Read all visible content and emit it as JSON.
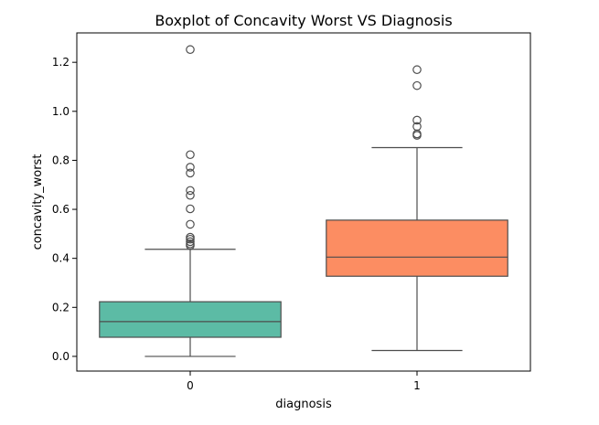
{
  "chart_data": {
    "type": "boxplot",
    "title": "Boxplot of Concavity Worst VS Diagnosis",
    "xlabel": "diagnosis",
    "ylabel": "concavity_worst",
    "categories": [
      "0",
      "1"
    ],
    "ylim": [
      -0.06,
      1.32
    ],
    "yticks": [
      0.0,
      0.2,
      0.4,
      0.6,
      0.8,
      1.0,
      1.2
    ],
    "ytick_labels": [
      "0.0",
      "0.2",
      "0.4",
      "0.6",
      "0.8",
      "1.0",
      "1.2"
    ],
    "grid": false,
    "boxes": [
      {
        "category": "0",
        "color": "#5cbba5",
        "whisker_low": 0.0,
        "q1": 0.078,
        "median": 0.142,
        "q3": 0.223,
        "whisker_high": 0.437,
        "outliers": [
          0.452,
          0.459,
          0.468,
          0.478,
          0.486,
          0.539,
          0.602,
          0.657,
          0.677,
          0.748,
          0.772,
          0.823,
          1.252
        ]
      },
      {
        "category": "1",
        "color": "#fc8d62",
        "whisker_low": 0.024,
        "q1": 0.327,
        "median": 0.405,
        "q3": 0.556,
        "whisker_high": 0.852,
        "outliers": [
          0.902,
          0.908,
          0.938,
          0.964,
          1.105,
          1.17
        ]
      }
    ]
  }
}
